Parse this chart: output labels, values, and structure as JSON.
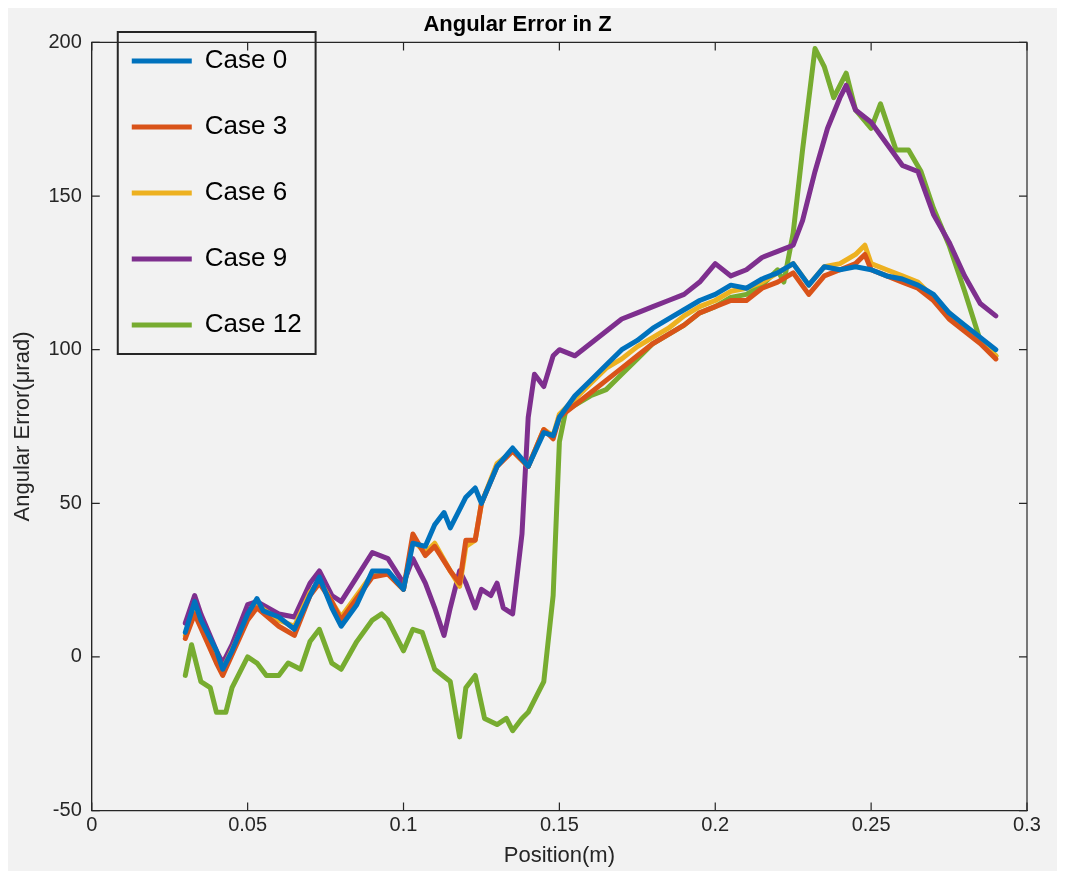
{
  "chart_data": {
    "type": "line",
    "title": "Angular Error in Z",
    "xlabel": "Position(m)",
    "ylabel": "Angular Error(μrad)",
    "xlim": [
      0,
      0.3
    ],
    "xticks": [
      0,
      0.05,
      0.1,
      0.15,
      0.2,
      0.25,
      0.3
    ],
    "ylim": [
      -50,
      200
    ],
    "yticks": [
      -50,
      0,
      50,
      100,
      150,
      200
    ],
    "grid": false,
    "legend": "top left",
    "line_style": "solid",
    "marker": "none",
    "series": [
      {
        "name": "Case 0",
        "color": "#0072bd",
        "x": [
          0.03,
          0.033,
          0.035,
          0.04,
          0.042,
          0.045,
          0.05,
          0.053,
          0.055,
          0.06,
          0.065,
          0.07,
          0.073,
          0.077,
          0.08,
          0.085,
          0.09,
          0.095,
          0.1,
          0.103,
          0.107,
          0.11,
          0.113,
          0.115,
          0.12,
          0.123,
          0.125,
          0.13,
          0.135,
          0.14,
          0.145,
          0.148,
          0.15,
          0.155,
          0.16,
          0.165,
          0.17,
          0.175,
          0.18,
          0.185,
          0.19,
          0.195,
          0.2,
          0.205,
          0.21,
          0.215,
          0.22,
          0.225,
          0.23,
          0.235,
          0.24,
          0.245,
          0.25,
          0.255,
          0.26,
          0.265,
          0.27,
          0.275,
          0.28,
          0.285,
          0.29
        ],
        "values": [
          8,
          18,
          12,
          2,
          -4,
          2,
          14,
          19,
          15,
          13,
          9,
          20,
          26,
          16,
          10,
          17,
          28,
          28,
          22,
          37,
          36,
          43,
          47,
          42,
          52,
          55,
          50,
          62,
          68,
          62,
          73,
          72,
          78,
          85,
          90,
          95,
          100,
          103,
          107,
          110,
          113,
          116,
          118,
          121,
          120,
          123,
          125,
          128,
          121,
          127,
          126,
          127,
          126,
          124,
          123,
          121,
          118,
          112,
          108,
          104,
          100
        ]
      },
      {
        "name": "Case 3",
        "color": "#d95319",
        "x": [
          0.03,
          0.033,
          0.04,
          0.042,
          0.05,
          0.053,
          0.06,
          0.065,
          0.07,
          0.073,
          0.077,
          0.08,
          0.09,
          0.095,
          0.1,
          0.103,
          0.107,
          0.11,
          0.115,
          0.118,
          0.12,
          0.123,
          0.125,
          0.13,
          0.135,
          0.14,
          0.145,
          0.148,
          0.15,
          0.155,
          0.16,
          0.165,
          0.17,
          0.175,
          0.18,
          0.185,
          0.19,
          0.195,
          0.2,
          0.205,
          0.21,
          0.215,
          0.22,
          0.225,
          0.23,
          0.235,
          0.24,
          0.245,
          0.248,
          0.25,
          0.255,
          0.26,
          0.265,
          0.27,
          0.275,
          0.28,
          0.285,
          0.29
        ],
        "values": [
          6,
          14,
          -2,
          -6,
          12,
          16,
          10,
          7,
          20,
          24,
          18,
          12,
          26,
          27,
          22,
          40,
          33,
          36,
          28,
          24,
          38,
          38,
          50,
          62,
          67,
          62,
          74,
          71,
          78,
          82,
          86,
          90,
          94,
          98,
          102,
          105,
          108,
          112,
          114,
          116,
          116,
          120,
          122,
          125,
          118,
          124,
          126,
          128,
          131,
          126,
          124,
          122,
          120,
          116,
          110,
          106,
          102,
          97
        ]
      },
      {
        "name": "Case 6",
        "color": "#edb120",
        "x": [
          0.03,
          0.033,
          0.04,
          0.042,
          0.05,
          0.053,
          0.06,
          0.065,
          0.07,
          0.073,
          0.077,
          0.08,
          0.09,
          0.095,
          0.1,
          0.103,
          0.107,
          0.11,
          0.115,
          0.118,
          0.12,
          0.123,
          0.125,
          0.13,
          0.135,
          0.14,
          0.145,
          0.148,
          0.15,
          0.155,
          0.16,
          0.165,
          0.17,
          0.175,
          0.18,
          0.185,
          0.19,
          0.195,
          0.2,
          0.205,
          0.21,
          0.215,
          0.22,
          0.225,
          0.23,
          0.235,
          0.24,
          0.245,
          0.248,
          0.25,
          0.255,
          0.26,
          0.265,
          0.27,
          0.275,
          0.28,
          0.285,
          0.29
        ],
        "values": [
          7,
          16,
          0,
          -4,
          13,
          17,
          12,
          10,
          21,
          25,
          18,
          13,
          27,
          27,
          22,
          38,
          34,
          37,
          28,
          23,
          36,
          38,
          50,
          63,
          67,
          62,
          74,
          72,
          79,
          84,
          89,
          94,
          97,
          101,
          104,
          107,
          111,
          114,
          116,
          119,
          120,
          122,
          125,
          128,
          121,
          127,
          128,
          131,
          134,
          128,
          126,
          124,
          122,
          117,
          112,
          107,
          103,
          98
        ]
      },
      {
        "name": "Case 9",
        "color": "#7e2f8e",
        "x": [
          0.03,
          0.033,
          0.035,
          0.04,
          0.042,
          0.045,
          0.05,
          0.053,
          0.06,
          0.065,
          0.07,
          0.073,
          0.077,
          0.08,
          0.085,
          0.09,
          0.095,
          0.1,
          0.103,
          0.107,
          0.11,
          0.113,
          0.115,
          0.118,
          0.12,
          0.123,
          0.125,
          0.128,
          0.13,
          0.132,
          0.135,
          0.138,
          0.14,
          0.142,
          0.145,
          0.148,
          0.15,
          0.155,
          0.16,
          0.165,
          0.17,
          0.175,
          0.18,
          0.185,
          0.19,
          0.195,
          0.2,
          0.205,
          0.21,
          0.215,
          0.22,
          0.225,
          0.228,
          0.232,
          0.236,
          0.24,
          0.242,
          0.245,
          0.25,
          0.255,
          0.26,
          0.265,
          0.27,
          0.275,
          0.28,
          0.285,
          0.29
        ],
        "values": [
          11,
          20,
          14,
          2,
          -2,
          4,
          17,
          18,
          14,
          13,
          24,
          28,
          20,
          18,
          26,
          34,
          32,
          24,
          32,
          24,
          16,
          7,
          16,
          28,
          24,
          16,
          22,
          20,
          24,
          16,
          14,
          40,
          78,
          92,
          88,
          98,
          100,
          98,
          102,
          106,
          110,
          112,
          114,
          116,
          118,
          122,
          128,
          124,
          126,
          130,
          132,
          134,
          142,
          158,
          172,
          182,
          186,
          178,
          174,
          167,
          160,
          158,
          144,
          135,
          124,
          115,
          111
        ]
      },
      {
        "name": "Case 12",
        "color": "#77ac30",
        "x": [
          0.03,
          0.032,
          0.035,
          0.038,
          0.04,
          0.043,
          0.045,
          0.05,
          0.053,
          0.056,
          0.06,
          0.063,
          0.067,
          0.07,
          0.073,
          0.077,
          0.08,
          0.085,
          0.09,
          0.093,
          0.095,
          0.1,
          0.103,
          0.106,
          0.11,
          0.115,
          0.118,
          0.12,
          0.123,
          0.126,
          0.13,
          0.133,
          0.135,
          0.138,
          0.14,
          0.143,
          0.145,
          0.148,
          0.15,
          0.152,
          0.155,
          0.16,
          0.165,
          0.17,
          0.175,
          0.18,
          0.185,
          0.19,
          0.195,
          0.2,
          0.205,
          0.21,
          0.215,
          0.22,
          0.222,
          0.225,
          0.228,
          0.232,
          0.235,
          0.238,
          0.242,
          0.245,
          0.25,
          0.253,
          0.258,
          0.262,
          0.266,
          0.27,
          0.275,
          0.28,
          0.285,
          0.29
        ],
        "values": [
          -6,
          4,
          -8,
          -10,
          -18,
          -18,
          -10,
          0,
          -2,
          -6,
          -6,
          -2,
          -4,
          5,
          9,
          -2,
          -4,
          5,
          12,
          14,
          12,
          2,
          9,
          8,
          -4,
          -8,
          -26,
          -10,
          -6,
          -20,
          -22,
          -20,
          -24,
          -20,
          -18,
          -12,
          -8,
          20,
          70,
          80,
          82,
          85,
          87,
          92,
          97,
          102,
          105,
          108,
          112,
          114,
          117,
          118,
          121,
          126,
          122,
          138,
          165,
          198,
          192,
          182,
          190,
          178,
          172,
          180,
          165,
          165,
          158,
          146,
          134,
          119,
          103,
          98
        ]
      }
    ]
  }
}
